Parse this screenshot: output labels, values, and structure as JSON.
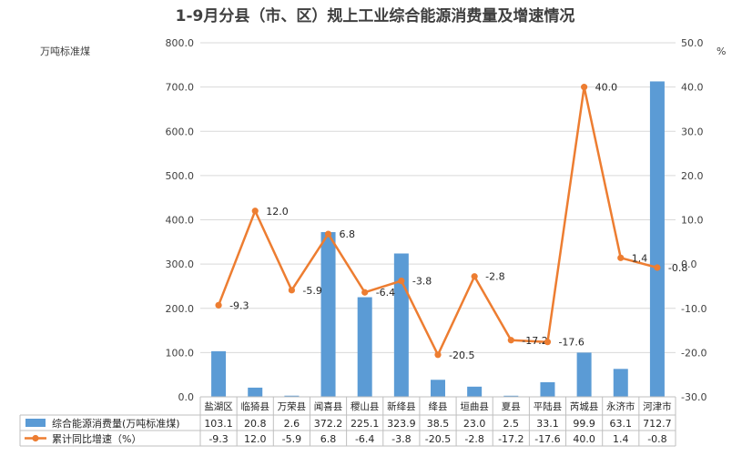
{
  "chart_data": {
    "type": "bar+line",
    "title": "1-9月分县（市、区）规上工业综合能源消费量及增速情况",
    "left_axis_unit": "万吨标准煤",
    "right_axis_unit": "%",
    "left_ylim": [
      0,
      800
    ],
    "left_ticks": [
      "0.0",
      "100.0",
      "200.0",
      "300.0",
      "400.0",
      "500.0",
      "600.0",
      "700.0",
      "800.0"
    ],
    "right_ylim": [
      -30,
      50
    ],
    "right_ticks": [
      "-30.0",
      "-20.0",
      "-10.0",
      "0.0",
      "10.0",
      "20.0",
      "30.0",
      "40.0",
      "50.0"
    ],
    "categories": [
      "盐湖区",
      "临猗县",
      "万荣县",
      "闻喜县",
      "稷山县",
      "新绛县",
      "绛县",
      "垣曲县",
      "夏县",
      "平陆县",
      "芮城县",
      "永济市",
      "河津市"
    ],
    "series": [
      {
        "name": "综合能源消费量(万吨标准煤)",
        "type": "bar",
        "axis": "left",
        "color": "#5b9bd5",
        "values": [
          103.1,
          20.8,
          2.6,
          372.2,
          225.1,
          323.9,
          38.5,
          23.0,
          2.5,
          33.1,
          99.9,
          63.1,
          712.7
        ],
        "labels": [
          "103.1",
          "20.8",
          "2.6",
          "372.2",
          "225.1",
          "323.9",
          "38.5",
          "23.0",
          "2.5",
          "33.1",
          "99.9",
          "63.1",
          "712.7"
        ]
      },
      {
        "name": "累计同比增速（%）",
        "type": "line",
        "axis": "right",
        "color": "#ed7d31",
        "values": [
          -9.3,
          12.0,
          -5.9,
          6.8,
          -6.4,
          -3.8,
          -20.5,
          -2.8,
          -17.2,
          -17.6,
          40.0,
          1.4,
          -0.8
        ],
        "labels": [
          "-9.3",
          "12.0",
          "-5.9",
          "6.8",
          "-6.4",
          "-3.8",
          "-20.5",
          "-2.8",
          "-17.2",
          "-17.6",
          "40.0",
          "1.4",
          "-0.8"
        ]
      }
    ],
    "grid": true,
    "legend": "data-table"
  }
}
